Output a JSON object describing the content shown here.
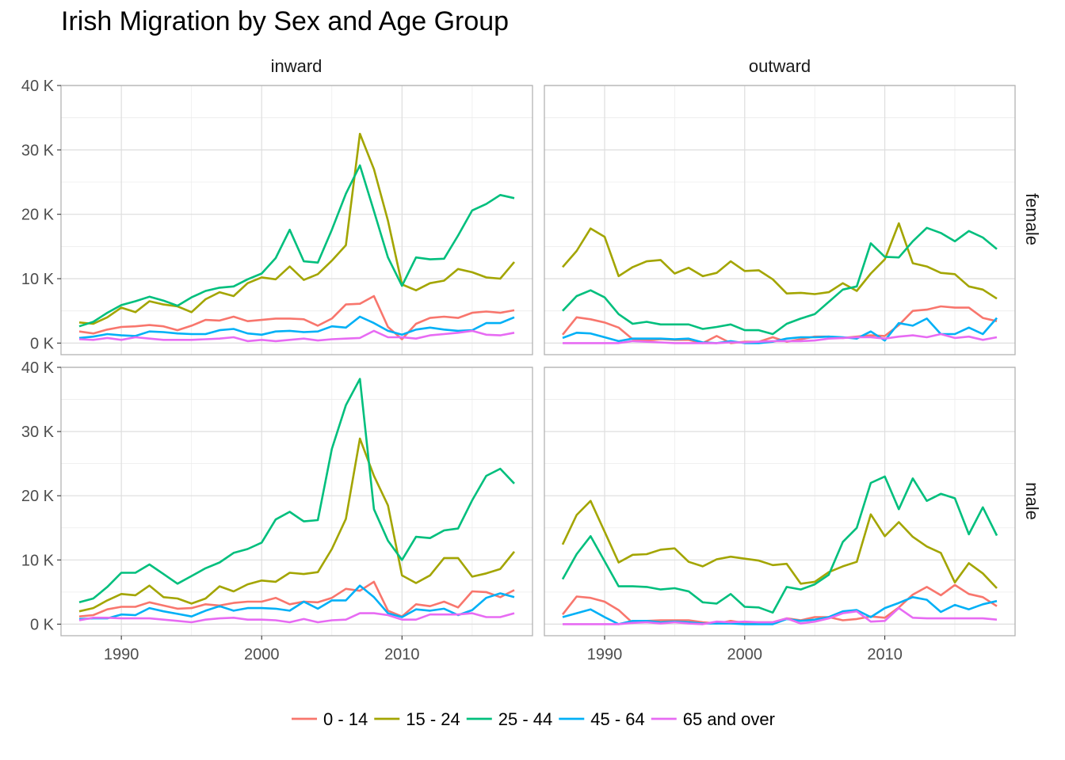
{
  "chart_data": {
    "type": "line",
    "title": "Irish Migration by Sex and Age Group",
    "xlabel": "",
    "ylabel": "",
    "xlim": [
      1985.7,
      2019.3
    ],
    "ylim": [
      -1800,
      40000
    ],
    "x_ticks": [
      1990,
      2000,
      2010
    ],
    "y_ticks": [
      0,
      10000,
      20000,
      30000,
      40000
    ],
    "y_tick_labels": [
      "0 K",
      "10 K",
      "20 K",
      "30 K",
      "40 K"
    ],
    "col_facets": [
      "inward",
      "outward"
    ],
    "row_facets": [
      "female",
      "male"
    ],
    "grid": true,
    "legend_position": "bottom",
    "years": [
      1987,
      1988,
      1989,
      1990,
      1991,
      1992,
      1993,
      1994,
      1995,
      1996,
      1997,
      1998,
      1999,
      2000,
      2001,
      2002,
      2003,
      2004,
      2005,
      2006,
      2007,
      2008,
      2009,
      2010,
      2011,
      2012,
      2013,
      2014,
      2015,
      2016,
      2017,
      2018
    ],
    "series": [
      {
        "name": "0 - 14",
        "color": "#F8766D"
      },
      {
        "name": "15 - 24",
        "color": "#A3A500"
      },
      {
        "name": "25 - 44",
        "color": "#00BF7D"
      },
      {
        "name": "45 - 64",
        "color": "#00B0F6"
      },
      {
        "name": "65 and over",
        "color": "#E76BF3"
      }
    ],
    "panels": [
      {
        "direction": "inward",
        "sex": "female",
        "values": {
          "0 - 14": [
            1800,
            1500,
            2100,
            2500,
            2600,
            2800,
            2600,
            2000,
            2700,
            3600,
            3500,
            4100,
            3400,
            3600,
            3800,
            3800,
            3700,
            2700,
            3800,
            6000,
            6100,
            7300,
            2500,
            600,
            3000,
            3900,
            4100,
            3900,
            4700,
            4900,
            4700,
            5100
          ],
          "15 - 24": [
            3200,
            3000,
            4000,
            5500,
            4800,
            6500,
            6000,
            5700,
            4800,
            6800,
            7900,
            7300,
            9300,
            10200,
            9900,
            11900,
            9800,
            10700,
            12800,
            15200,
            32500,
            27000,
            19000,
            9100,
            8200,
            9300,
            9700,
            11500,
            11000,
            10200,
            10000,
            12600
          ],
          "25 - 44": [
            2600,
            3300,
            4700,
            5900,
            6500,
            7200,
            6600,
            5800,
            7100,
            8100,
            8600,
            8800,
            9900,
            10800,
            13200,
            17600,
            12700,
            12500,
            17600,
            23200,
            27600,
            20500,
            13300,
            8900,
            13300,
            13000,
            13100,
            16700,
            20600,
            21600,
            23000,
            22500
          ],
          "45 - 64": [
            800,
            1000,
            1400,
            1200,
            1100,
            1800,
            1700,
            1500,
            1400,
            1400,
            2000,
            2200,
            1500,
            1300,
            1800,
            1900,
            1700,
            1800,
            2600,
            2400,
            4100,
            3100,
            1900,
            1300,
            2100,
            2400,
            2100,
            1900,
            2000,
            3100,
            3100,
            4000
          ],
          "65 and over": [
            600,
            500,
            800,
            500,
            900,
            700,
            500,
            500,
            500,
            600,
            700,
            900,
            300,
            500,
            300,
            500,
            700,
            400,
            600,
            700,
            800,
            1900,
            900,
            900,
            700,
            1200,
            1400,
            1600,
            1900,
            1300,
            1200,
            1600
          ]
        }
      },
      {
        "direction": "outward",
        "sex": "female",
        "values": {
          "0 - 14": [
            1300,
            4000,
            3700,
            3200,
            2400,
            600,
            400,
            600,
            500,
            500,
            0,
            1100,
            0,
            200,
            200,
            900,
            200,
            600,
            1000,
            1000,
            800,
            1000,
            1200,
            1100,
            2800,
            5000,
            5200,
            5700,
            5500,
            5500,
            3900,
            3400
          ],
          "15 - 24": [
            11800,
            14300,
            17800,
            16500,
            10400,
            11800,
            12700,
            12900,
            10800,
            11700,
            10400,
            10900,
            12700,
            11200,
            11300,
            9900,
            7700,
            7800,
            7600,
            7900,
            9300,
            8100,
            10800,
            13000,
            18600,
            12400,
            11900,
            10900,
            10700,
            8800,
            8300,
            6900
          ],
          "25 - 44": [
            5000,
            7300,
            8200,
            7100,
            4500,
            3000,
            3300,
            2900,
            2900,
            2900,
            2200,
            2500,
            2900,
            2000,
            2000,
            1400,
            3000,
            3800,
            4500,
            6400,
            8300,
            8800,
            15500,
            13400,
            13300,
            15800,
            17900,
            17100,
            15800,
            17400,
            16400,
            14600
          ],
          "45 - 64": [
            800,
            1600,
            1500,
            900,
            300,
            700,
            700,
            700,
            600,
            700,
            100,
            0,
            300,
            0,
            0,
            200,
            700,
            900,
            900,
            1000,
            900,
            700,
            1800,
            400,
            3100,
            2700,
            3800,
            1400,
            1400,
            2400,
            1400,
            3900
          ],
          "65 and over": [
            0,
            0,
            0,
            0,
            0,
            300,
            200,
            100,
            0,
            0,
            0,
            0,
            100,
            100,
            200,
            300,
            300,
            300,
            400,
            700,
            800,
            900,
            900,
            700,
            1000,
            1200,
            900,
            1400,
            800,
            1000,
            500,
            900
          ]
        }
      },
      {
        "direction": "inward",
        "sex": "male",
        "values": {
          "0 - 14": [
            1200,
            1400,
            2300,
            2700,
            2700,
            3400,
            2900,
            2400,
            2500,
            3100,
            2900,
            3300,
            3500,
            3500,
            4100,
            3100,
            3500,
            3400,
            4100,
            5500,
            5200,
            6600,
            2100,
            1200,
            3100,
            2800,
            3500,
            2600,
            5100,
            5000,
            4200,
            5300
          ],
          "15 - 24": [
            2000,
            2500,
            3700,
            4700,
            4500,
            6000,
            4200,
            4000,
            3200,
            4000,
            5900,
            5100,
            6200,
            6800,
            6600,
            8000,
            7800,
            8100,
            11700,
            16400,
            28900,
            23100,
            18500,
            7600,
            6400,
            7600,
            10300,
            10300,
            7400,
            7900,
            8600,
            11300
          ],
          "25 - 44": [
            3400,
            4000,
            5800,
            8000,
            8000,
            9300,
            7800,
            6300,
            7500,
            8700,
            9600,
            11100,
            11700,
            12700,
            16300,
            17500,
            16000,
            16200,
            27300,
            34100,
            38200,
            17900,
            13000,
            10000,
            13600,
            13400,
            14600,
            14900,
            19300,
            23100,
            24200,
            21900
          ],
          "45 - 64": [
            800,
            900,
            900,
            1500,
            1400,
            2500,
            2000,
            1600,
            1200,
            2100,
            2800,
            2100,
            2500,
            2500,
            2400,
            2100,
            3500,
            2400,
            3700,
            3700,
            6000,
            4200,
            1700,
            1100,
            2300,
            2100,
            2400,
            1400,
            2200,
            4100,
            4800,
            4200
          ],
          "65 and over": [
            600,
            1000,
            1000,
            900,
            900,
            900,
            700,
            500,
            300,
            700,
            900,
            1000,
            700,
            700,
            600,
            300,
            800,
            300,
            600,
            700,
            1700,
            1700,
            1400,
            700,
            700,
            1500,
            1500,
            1500,
            1700,
            1100,
            1100,
            1700
          ]
        }
      },
      {
        "direction": "outward",
        "sex": "male",
        "values": {
          "0 - 14": [
            1500,
            4300,
            4100,
            3500,
            2200,
            200,
            500,
            600,
            600,
            600,
            300,
            100,
            500,
            200,
            300,
            300,
            900,
            600,
            1100,
            1100,
            600,
            800,
            1200,
            1000,
            2600,
            4600,
            5800,
            4500,
            6100,
            4700,
            4200,
            2800
          ],
          "15 - 24": [
            12400,
            17000,
            19200,
            14400,
            9600,
            10800,
            10900,
            11600,
            11800,
            9700,
            9000,
            10100,
            10500,
            10200,
            9900,
            9200,
            9400,
            6300,
            6600,
            8100,
            9000,
            9700,
            17100,
            13700,
            15900,
            13600,
            12100,
            11100,
            6500,
            9500,
            7900,
            5600
          ],
          "25 - 44": [
            7000,
            10900,
            13700,
            9800,
            5900,
            5900,
            5800,
            5400,
            5600,
            5100,
            3400,
            3200,
            4700,
            2700,
            2600,
            1800,
            5800,
            5400,
            6200,
            7700,
            12800,
            15000,
            22000,
            23000,
            17900,
            22700,
            19200,
            20300,
            19600,
            14000,
            18200,
            13800
          ],
          "45 - 64": [
            1100,
            1700,
            2300,
            1100,
            0,
            500,
            500,
            300,
            400,
            300,
            100,
            100,
            100,
            0,
            0,
            0,
            800,
            500,
            700,
            1100,
            2000,
            2200,
            1100,
            2500,
            3300,
            4200,
            3800,
            1900,
            3000,
            2300,
            3100,
            3600
          ],
          "65 and over": [
            0,
            0,
            0,
            0,
            0,
            200,
            300,
            100,
            300,
            100,
            0,
            400,
            300,
            400,
            300,
            300,
            900,
            100,
            400,
            900,
            1700,
            2000,
            400,
            500,
            2500,
            1000,
            900,
            900,
            900,
            900,
            900,
            700
          ]
        }
      }
    ]
  }
}
